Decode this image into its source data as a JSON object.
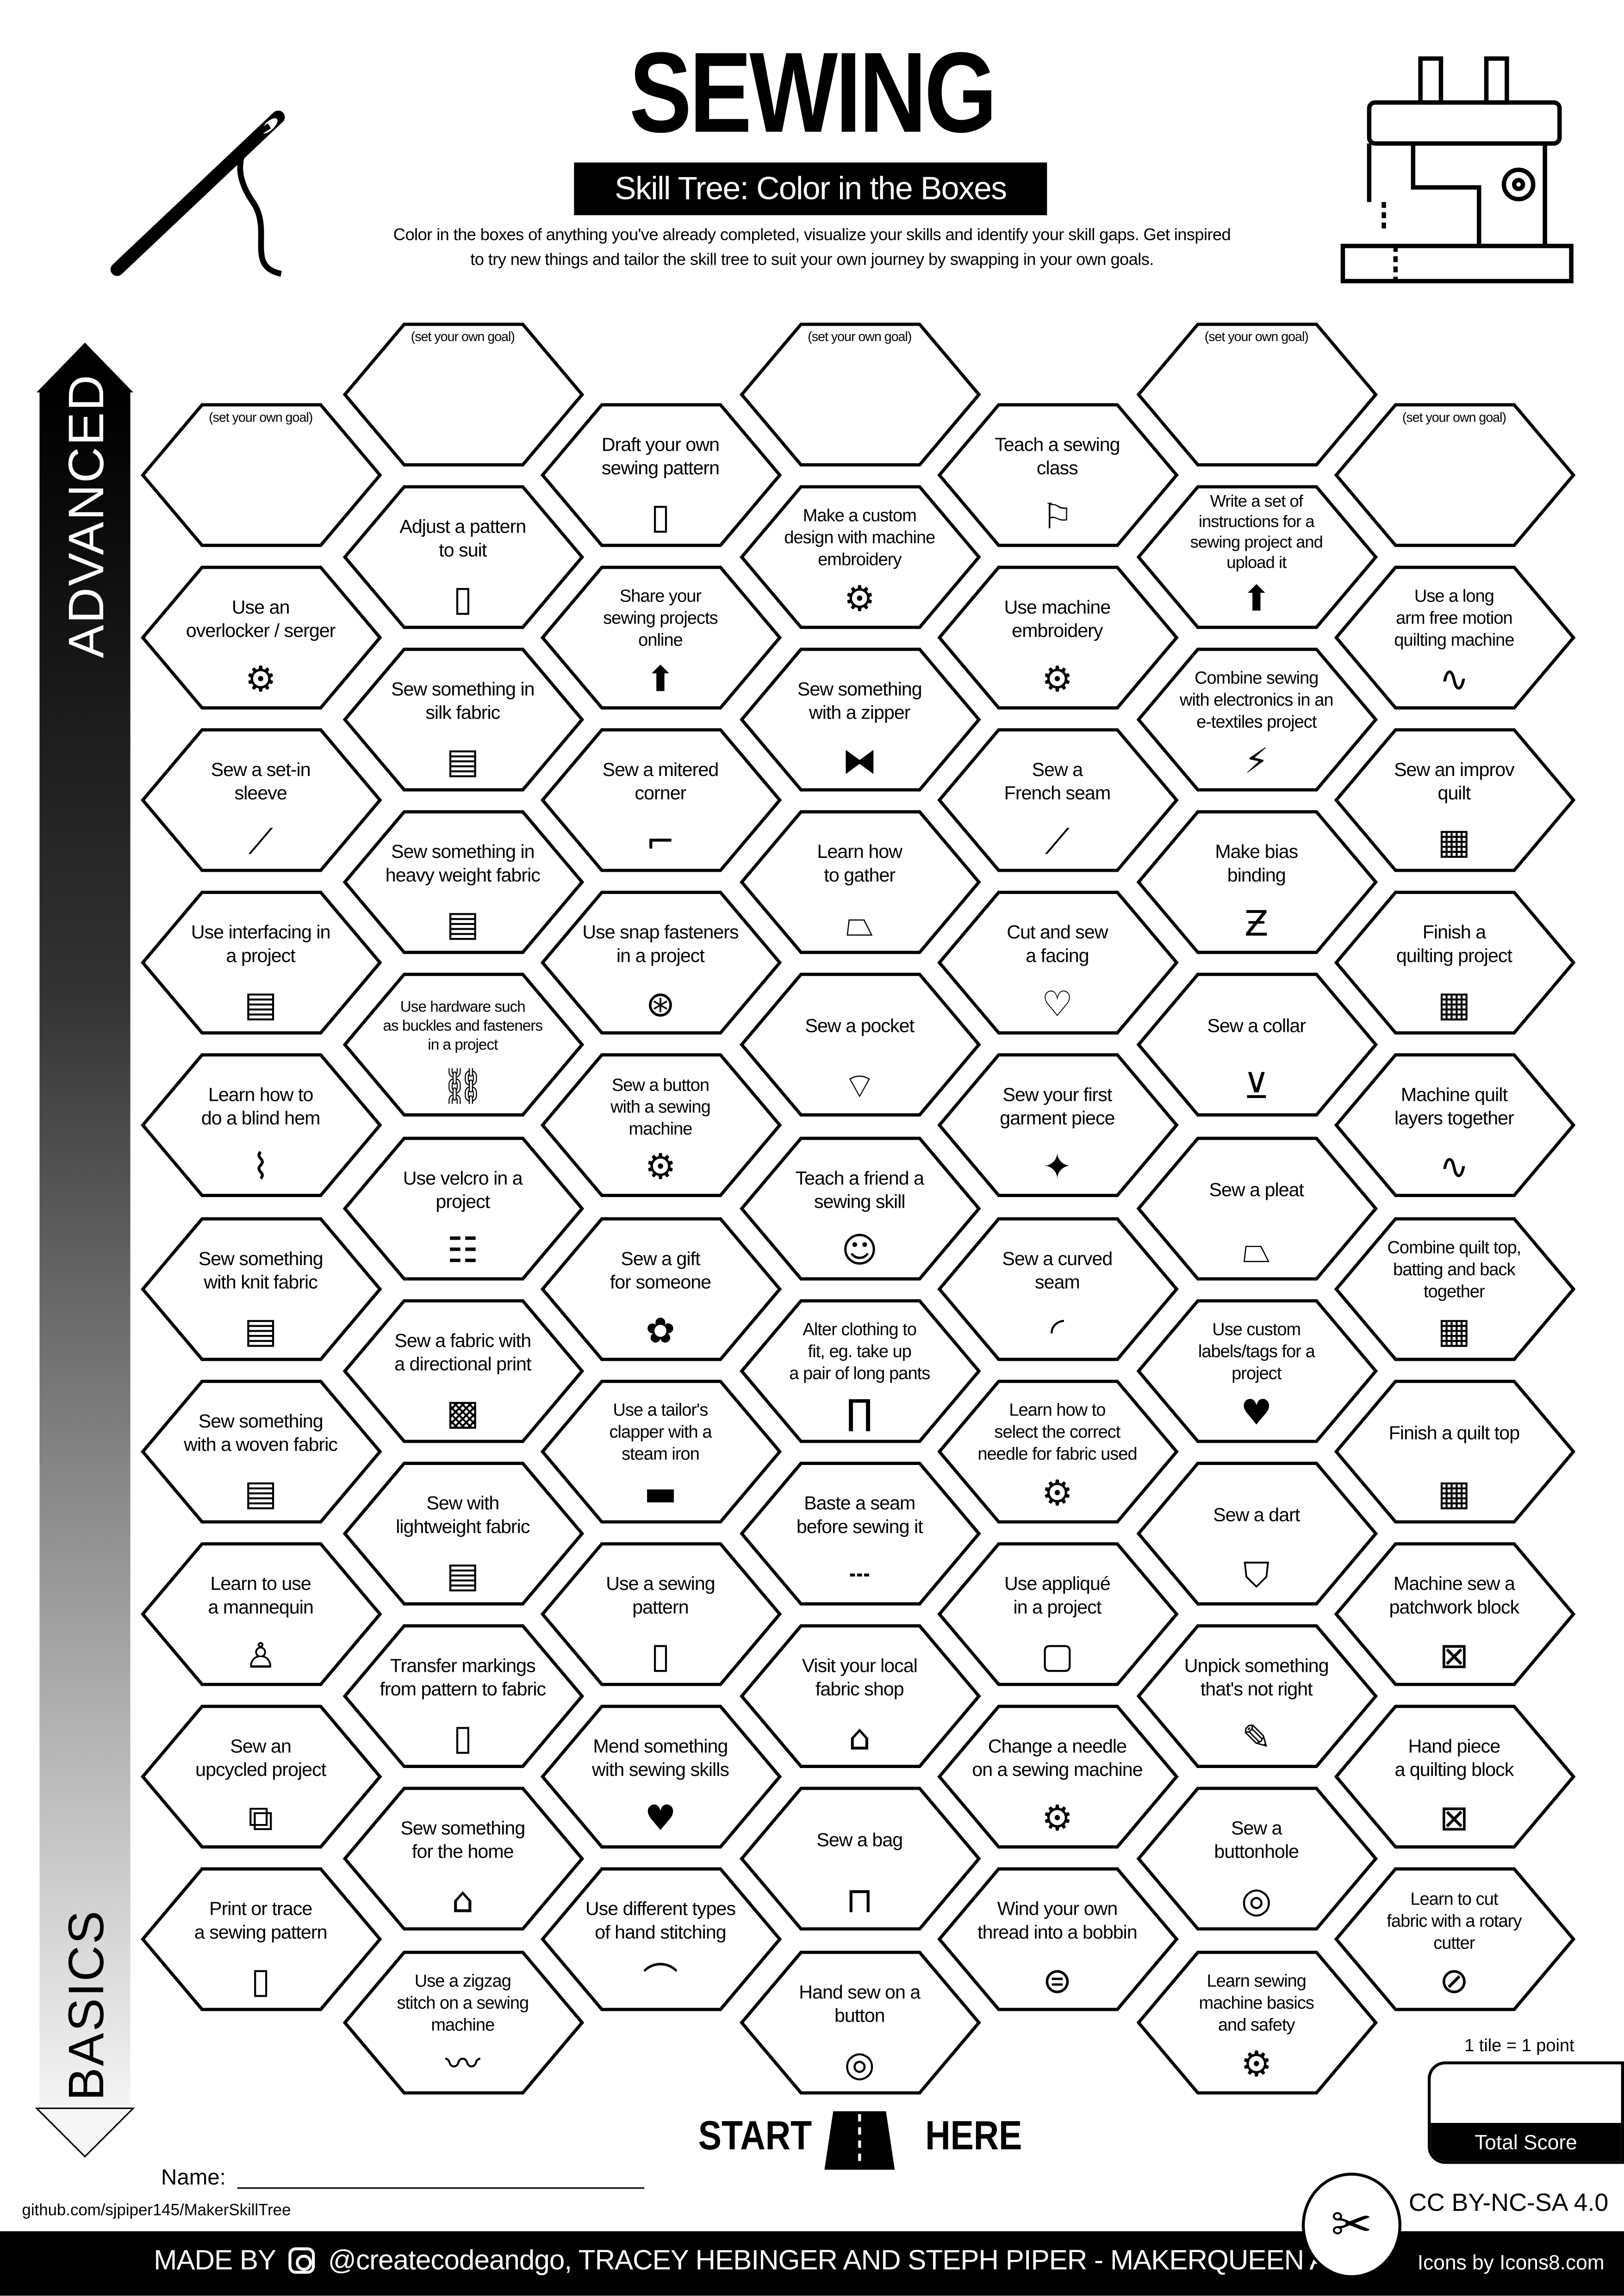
{
  "header": {
    "title": "SEWING",
    "subtitle": "Skill Tree: Color in the Boxes",
    "description": "Color in the boxes of anything you've already completed, visualize your skills and identify your skill gaps.  Get inspired\nto try new things and tailor the skill tree to suit your own journey by swapping in your own goals.",
    "left_icon": "needle-thread-icon",
    "right_icon": "sewing-machine-icon"
  },
  "axis": {
    "top": "ADVANCED",
    "bottom": "BASICS"
  },
  "columns": [
    [
      {
        "label": "(set your own goal)",
        "icon": "",
        "goal": true
      },
      {
        "label": "Use an\noverlocker / serger",
        "icon": "serger"
      },
      {
        "label": "Sew a set-in\nsleeve",
        "icon": "sleeve"
      },
      {
        "label": "Use interfacing in\na project",
        "icon": "fabric"
      },
      {
        "label": "Learn how to\ndo a blind hem",
        "icon": "blind-hem"
      },
      {
        "label": "Sew something\nwith knit fabric",
        "icon": "fabric"
      },
      {
        "label": "Sew something\nwith a woven fabric",
        "icon": "fabric"
      },
      {
        "label": "Learn to use\na mannequin",
        "icon": "mannequin"
      },
      {
        "label": "Sew an\nupcycled project",
        "icon": "patch"
      },
      {
        "label": "Print or trace\na sewing pattern",
        "icon": "pattern"
      }
    ],
    [
      {
        "label": "(set your own goal)",
        "icon": "",
        "goal": true
      },
      {
        "label": "Adjust a pattern\nto suit",
        "icon": "pattern"
      },
      {
        "label": "Sew something in\nsilk fabric",
        "icon": "fabric"
      },
      {
        "label": "Sew something in\nheavy weight fabric",
        "icon": "fabric"
      },
      {
        "label": "Use hardware such\nas buckles and fasteners\nin a project",
        "icon": "buckle",
        "small": true
      },
      {
        "label": "Use velcro in a\nproject",
        "icon": "velcro"
      },
      {
        "label": "Sew a fabric with\na directional print",
        "icon": "print"
      },
      {
        "label": "Sew with\nlightweight fabric",
        "icon": "fabric"
      },
      {
        "label": "Transfer markings\nfrom pattern to fabric",
        "icon": "pattern"
      },
      {
        "label": "Sew something\nfor the home",
        "icon": "home"
      },
      {
        "label": "Use a zigzag\nstitch on a sewing\nmachine",
        "icon": "zigzag"
      }
    ],
    [
      {
        "label": "Draft your own\nsewing pattern",
        "icon": "pattern"
      },
      {
        "label": "Share your\nsewing projects\nonline",
        "icon": "upload"
      },
      {
        "label": "Sew a mitered\ncorner",
        "icon": "corner"
      },
      {
        "label": "Use snap fasteners\nin a project",
        "icon": "snap"
      },
      {
        "label": "Sew a button\nwith a sewing\nmachine",
        "icon": "machine"
      },
      {
        "label": "Sew a gift\nfor someone",
        "icon": "bow"
      },
      {
        "label": "Use a tailor's\nclapper with a\nsteam iron",
        "icon": "clapper"
      },
      {
        "label": "Use a sewing\npattern",
        "icon": "pattern"
      },
      {
        "label": "Mend something\nwith sewing skills",
        "icon": "broken-heart"
      },
      {
        "label": "Use different types\nof hand stitching",
        "icon": "hand-stitch"
      }
    ],
    [
      {
        "label": "(set your own goal)",
        "icon": "",
        "goal": true
      },
      {
        "label": "Make a custom\ndesign with machine\nembroidery",
        "icon": "machine"
      },
      {
        "label": "Sew something\nwith a zipper",
        "icon": "zipper"
      },
      {
        "label": "Learn how\nto gather",
        "icon": "skirt"
      },
      {
        "label": "Sew a pocket",
        "icon": "pocket"
      },
      {
        "label": "Teach a friend a\nsewing skill",
        "icon": "friends"
      },
      {
        "label": "Alter clothing to\nfit, eg. take up\na pair of long pants",
        "icon": "pants"
      },
      {
        "label": "Baste a seam\nbefore sewing it",
        "icon": "baste"
      },
      {
        "label": "Visit your local\nfabric shop",
        "icon": "shop"
      },
      {
        "label": "Sew a bag",
        "icon": "bag"
      },
      {
        "label": "Hand sew on a\nbutton",
        "icon": "button"
      }
    ],
    [
      {
        "label": "Teach a sewing\nclass",
        "icon": "teacher"
      },
      {
        "label": "Use machine\nembroidery",
        "icon": "machine"
      },
      {
        "label": "Sew a\nFrench seam",
        "icon": "seam"
      },
      {
        "label": "Cut and sew\na facing",
        "icon": "tshirt"
      },
      {
        "label": "Sew your first\ngarment piece",
        "icon": "jacket"
      },
      {
        "label": "Sew a curved\nseam",
        "icon": "curve"
      },
      {
        "label": "Learn how to\nselect the correct\nneedle for fabric used",
        "icon": "machine"
      },
      {
        "label": "Use appliqué\nin a project",
        "icon": "applique"
      },
      {
        "label": "Change a needle\non a sewing machine",
        "icon": "machine"
      },
      {
        "label": "Wind your own\nthread into a bobbin",
        "icon": "spool"
      }
    ],
    [
      {
        "label": "(set your own goal)",
        "icon": "",
        "goal": true
      },
      {
        "label": "Write a set of\ninstructions for a\nsewing project and\nupload it",
        "icon": "upload"
      },
      {
        "label": "Combine sewing\nwith electronics in an\ne-textiles project",
        "icon": "led"
      },
      {
        "label": "Make bias\nbinding",
        "icon": "bias"
      },
      {
        "label": "Sew a collar",
        "icon": "shirt"
      },
      {
        "label": "Sew a pleat",
        "icon": "skirt"
      },
      {
        "label": "Use custom\nlabels/tags for a\nproject",
        "icon": "label"
      },
      {
        "label": "Sew a dart",
        "icon": "bodice"
      },
      {
        "label": "Unpick something\nthat's not right",
        "icon": "seam-ripper"
      },
      {
        "label": "Sew a\nbuttonhole",
        "icon": "button"
      },
      {
        "label": "Learn sewing\nmachine basics\nand safety",
        "icon": "machine"
      }
    ],
    [
      {
        "label": "(set your own goal)",
        "icon": "",
        "goal": true
      },
      {
        "label": "Use a long\narm free motion\nquilting machine",
        "icon": "quilt-stitch"
      },
      {
        "label": "Sew an improv\nquilt",
        "icon": "quilt"
      },
      {
        "label": "Finish a\nquilting project",
        "icon": "quilt"
      },
      {
        "label": "Machine quilt\nlayers together",
        "icon": "quilt-stitch"
      },
      {
        "label": "Combine quilt top,\nbatting and back\ntogether",
        "icon": "quilt"
      },
      {
        "label": "Finish a quilt top",
        "icon": "quilt"
      },
      {
        "label": "Machine sew a\npatchwork block",
        "icon": "block"
      },
      {
        "label": "Hand piece\na quilting block",
        "icon": "block"
      },
      {
        "label": "Learn to cut\nfabric with a rotary\ncutter",
        "icon": "rotary-cutter"
      }
    ]
  ],
  "score": {
    "rule": "1 tile = 1 point",
    "label": "Total Score"
  },
  "start": {
    "left": "START",
    "right": "HERE"
  },
  "name_label": "Name:",
  "repo": "github.com/sjpiper145/MakerSkillTree",
  "license": "CC BY-NC-SA 4.0",
  "footer": {
    "made_by": "MADE BY",
    "credits": "@createcodeandgo, TRACEY HEBINGER  AND STEPH PIPER  -  MAKERQUEEN AU",
    "icons_credit": "Icons by Icons8.com"
  },
  "colors": {
    "ink": "#000000",
    "paper": "#ffffff"
  }
}
